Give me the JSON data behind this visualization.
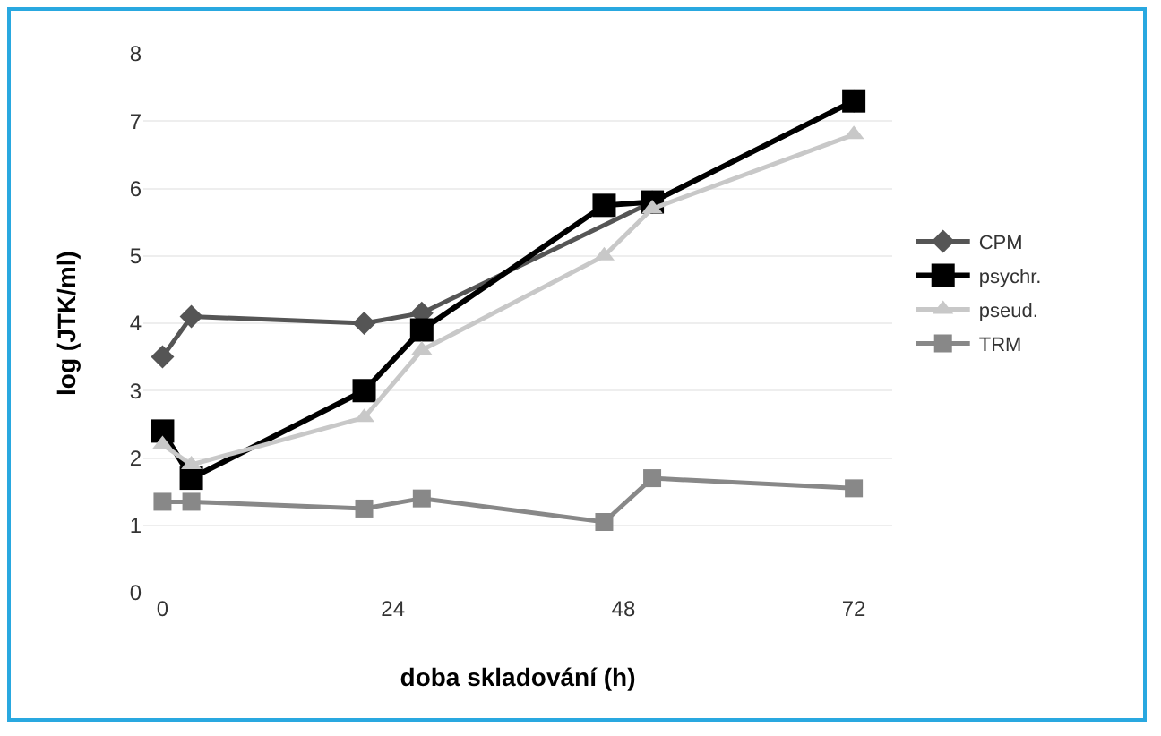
{
  "chart_data": {
    "type": "line",
    "xlabel": "doba skladování (h)",
    "ylabel": "log (JTK/ml)",
    "x": [
      0,
      3,
      21,
      27,
      46,
      51,
      72
    ],
    "xlim": [
      -2,
      76
    ],
    "xticks": [
      0,
      24,
      48,
      72
    ],
    "ylim": [
      0,
      8
    ],
    "yticks": [
      0,
      1,
      2,
      3,
      4,
      5,
      6,
      7,
      8
    ],
    "grid": "y",
    "legend": "right",
    "line_style": "solid",
    "series": [
      {
        "name": "CPM",
        "color": "#555555",
        "marker": "diamond",
        "values": [
          3.5,
          4.1,
          4.0,
          4.15,
          null,
          5.8,
          7.3
        ]
      },
      {
        "name": "psychr.",
        "color": "#000000",
        "marker": "square",
        "values": [
          2.4,
          1.7,
          3.0,
          3.9,
          5.75,
          5.8,
          7.3
        ]
      },
      {
        "name": "pseud.",
        "color": "#c8c8c8",
        "marker": "triangle",
        "values": [
          2.2,
          1.9,
          2.6,
          3.6,
          5.0,
          5.7,
          6.8
        ]
      },
      {
        "name": "TRM",
        "color": "#888888",
        "marker": "square",
        "values": [
          1.35,
          1.35,
          1.25,
          1.4,
          1.05,
          1.7,
          1.55
        ]
      }
    ]
  }
}
